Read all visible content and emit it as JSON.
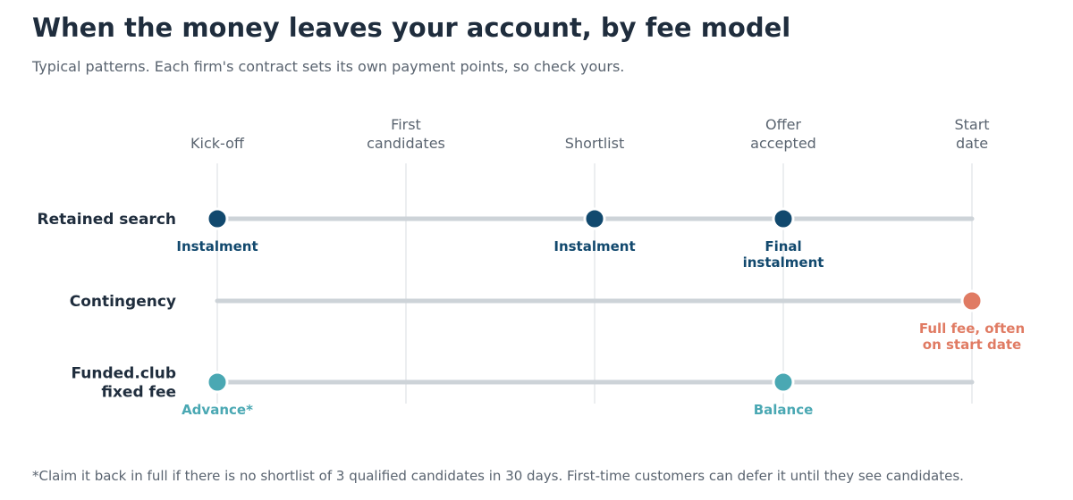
{
  "chart_data": {
    "type": "timeline",
    "title": "When the money leaves your account, by fee model",
    "subtitle": "Typical patterns. Each firm's contract sets its own payment points, so check yours.",
    "stages": [
      [
        "Kick-off"
      ],
      [
        "First",
        "candidates"
      ],
      [
        "Shortlist"
      ],
      [
        "Offer",
        "accepted"
      ],
      [
        "Start",
        "date"
      ]
    ],
    "rows": [
      {
        "name": [
          "Retained search"
        ],
        "color": "#12496e",
        "payments": [
          {
            "stage": 0,
            "label": [
              "Instalment"
            ]
          },
          {
            "stage": 2,
            "label": [
              "Instalment"
            ]
          },
          {
            "stage": 3,
            "label": [
              "Final",
              "instalment"
            ]
          }
        ]
      },
      {
        "name": [
          "Contingency"
        ],
        "color": "#e07b63",
        "payments": [
          {
            "stage": 4,
            "label": [
              "Full fee, often",
              "on start date"
            ]
          }
        ]
      },
      {
        "name": [
          "Funded.club",
          "fixed fee"
        ],
        "color": "#4aa8b3",
        "payments": [
          {
            "stage": 0,
            "label": [
              "Advance*"
            ]
          },
          {
            "stage": 3,
            "label": [
              "Balance"
            ]
          }
        ]
      }
    ],
    "footnote": "*Claim it back in full if there is no shortlist of 3 qualified candidates in 30 days. First-time customers can defer it until they see candidates.",
    "colors": {
      "track": "#cdd3d8",
      "gridline": "#eceef0",
      "text": "#1f2d3d",
      "muted": "#5a6470"
    }
  }
}
